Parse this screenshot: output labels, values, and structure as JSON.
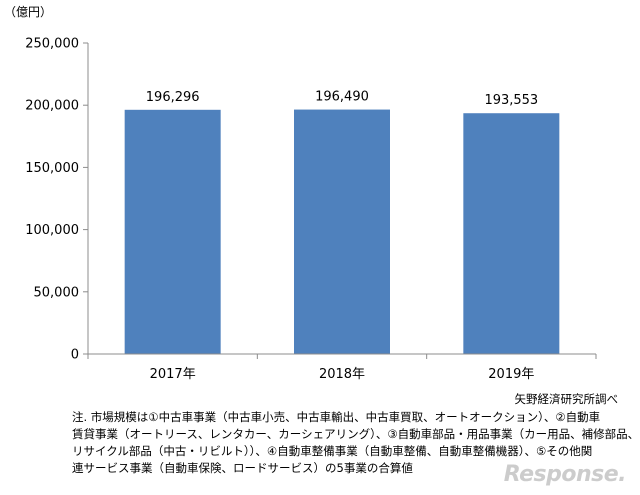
{
  "chart_data": {
    "type": "bar",
    "title": "",
    "unit_label": "（億円）",
    "categories": [
      "2017年",
      "2018年",
      "2019年"
    ],
    "values": [
      196296,
      196490,
      193553
    ],
    "value_labels": [
      "196,296",
      "196,490",
      "193,553"
    ],
    "ylim": [
      0,
      250000
    ],
    "yticks": [
      0,
      50000,
      100000,
      150000,
      200000,
      250000
    ],
    "ytick_labels": [
      "0",
      "50,000",
      "100,000",
      "150,000",
      "200,000",
      "250,000"
    ],
    "xlabel": "",
    "ylabel": "",
    "bar_color": "#4f81bd",
    "grid": false,
    "legend": "none"
  },
  "source": "矢野経済研究所調べ",
  "note_lines": [
    "注. 市場規模は①中古車事業（中古車小売、中古車輸出、中古車買取、オートオークション）、②自動車",
    "賃貸事業（オートリース、レンタカー、カーシェアリング）、③自動車部品・用品事業（カー用品、補修部品、",
    "リサイクル部品（中古・リビルト））、④自動車整備事業（自動車整備、自動車整備機器）、⑤その他関",
    "連サービス事業（自動車保険、ロードサービス）の5事業の合算値"
  ],
  "watermark": "Response."
}
